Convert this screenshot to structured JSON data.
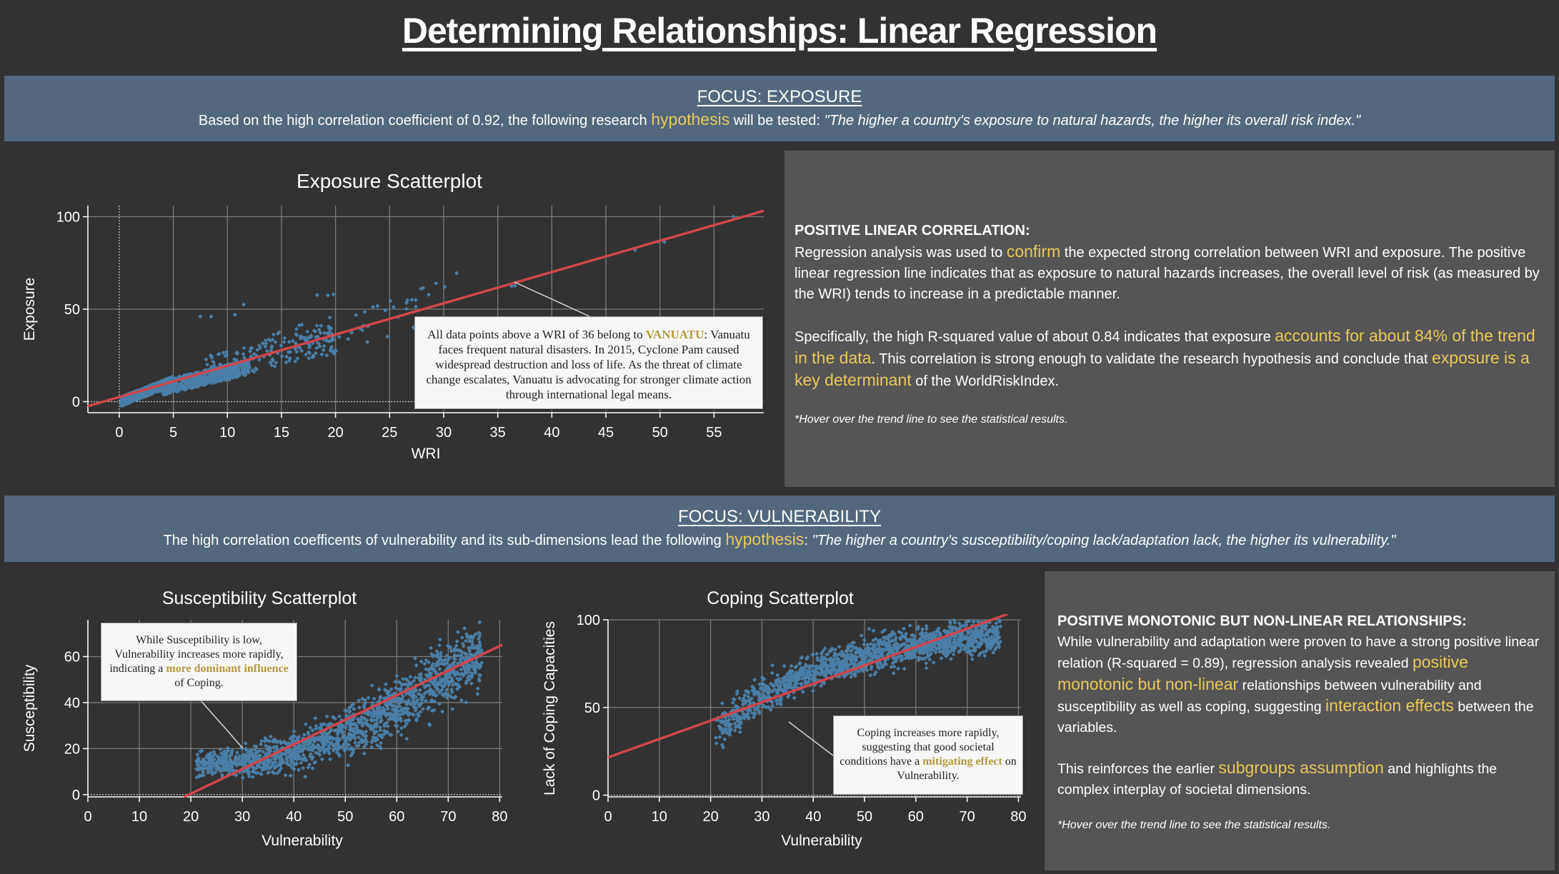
{
  "page": {
    "title": "Determining Relationships: Linear Regression"
  },
  "exposure_section": {
    "heading": "FOCUS: EXPOSURE",
    "text_before": "Based on the high correlation coefficient of 0.92, the following research ",
    "highlight": "hypothesis",
    "text_after": " will be tested: ",
    "quote": "\"The higher a country's exposure to natural hazards, the higher its overall risk index.\"",
    "panel": {
      "heading": "POSITIVE LINEAR CORRELATION:",
      "p1_a": "Regression analysis was used to ",
      "p1_hl": "confirm",
      "p1_b": " the expected strong correlation between WRI and exposure. The positive linear regression line indicates that as exposure to natural hazards increases, the overall level of risk (as measured by the WRI) tends to increase in a predictable manner.",
      "p2_a": "Specifically, the high R-squared value of about 0.84 indicates that exposure ",
      "p2_hl1": "accounts for about 84% of the trend in the data",
      "p2_b": ". This correlation is strong enough to validate the research hypothesis and conclude that ",
      "p2_hl2": "exposure is a key determinant",
      "p2_c": " of the WorldRiskIndex.",
      "note": "*Hover over the trend line to see the statistical results."
    },
    "annotation": {
      "a": "All data points above a WRI of 36 belong to ",
      "hl": "VANUATU",
      "b": ": Vanuatu faces frequent natural disasters. In 2015, Cyclone Pam caused widespread destruction and loss of life. As the threat of climate change escalates, Vanuatu is advocating for stronger climate action through international legal means."
    }
  },
  "vulnerability_section": {
    "heading": "FOCUS: VULNERABILITY",
    "text_before": "The high correlation coefficents of vulnerability and its sub-dimensions lead the following ",
    "highlight": "hypothesis",
    "text_after": ": ",
    "quote": "\"The higher a country's susceptibility/coping lack/adaptation lack, the higher its vulnerability.\"",
    "panel": {
      "heading": "POSITIVE MONOTONIC BUT NON-LINEAR RELATIONSHIPS:",
      "p1_a": "While vulnerability and adaptation were proven to have a strong positive linear relation (R-squared = 0.89), regression analysis revealed ",
      "p1_hl1": "positive monotonic but non-linear",
      "p1_b": " relationships between vulnerability and susceptibility as well as coping, suggesting ",
      "p1_hl2": "interaction effects",
      "p1_c": " between the variables.",
      "p2_a": "This reinforces the earlier ",
      "p2_hl": "subgroups assumption",
      "p2_b": " and highlights the complex interplay of societal dimensions.",
      "note": "*Hover over the trend line to see the statistical results."
    },
    "susceptibility_annotation": {
      "a": "While Susceptibility is low, Vulnerability increases more rapidly, indicating a ",
      "hl": "more dominant influence",
      "b": " of Coping."
    },
    "coping_annotation": {
      "a": "Coping increases more rapidly, suggesting that good societal conditions have a ",
      "hl": "mitigating effect",
      "b": " on Vulnerability."
    }
  },
  "colors": {
    "background": "#323232",
    "band": "#53677e",
    "panel": "#555555",
    "highlight": "#e8c95a",
    "annotation_highlight": "#b39a3c",
    "points": "#4a7ea6",
    "trend_line": "#d0454c"
  },
  "chart_data": [
    {
      "id": "exposure",
      "type": "scatter",
      "title": "Exposure Scatterplot",
      "xlabel": "WRI",
      "ylabel": "Exposure",
      "xlim": [
        -2.9,
        59.6
      ],
      "ylim": [
        -6,
        106
      ],
      "xticks": [
        0,
        5,
        10,
        15,
        20,
        25,
        30,
        35,
        40,
        45,
        50,
        55
      ],
      "yticks": [
        0,
        50,
        100
      ],
      "grid": true,
      "trend": {
        "intercept": 2.5,
        "slope": 1.69,
        "r_squared": 0.84,
        "x_range": [
          -2.9,
          59.6
        ]
      },
      "point_clusters": [
        {
          "n": 900,
          "x": [
            0.2,
            5
          ],
          "y_rel": [
            -2.5,
            2.5
          ],
          "base": "line",
          "base_slope": 2.3,
          "base_intercept": -0.3
        },
        {
          "n": 650,
          "x": [
            4,
            12
          ],
          "y_rel": [
            -5,
            3
          ],
          "base": "line",
          "base_slope": 1.45,
          "base_intercept": 2.5
        },
        {
          "n": 160,
          "x": [
            8,
            20
          ],
          "y_rel": [
            -6,
            10
          ],
          "base": "line",
          "base_slope": 1.45,
          "base_intercept": 3
        },
        {
          "n": 60,
          "x": [
            12,
            29
          ],
          "y_rel": [
            -8,
            12
          ],
          "base": "line",
          "base_slope": 1.55,
          "base_intercept": 4
        }
      ],
      "vanuatu_points": [
        [
          36.3,
          62.5
        ],
        [
          36.6,
          62.7
        ],
        [
          47.7,
          82
        ],
        [
          49.8,
          86.5
        ],
        [
          50.4,
          86.3
        ],
        [
          56.8,
          100
        ]
      ],
      "outliers": [
        [
          27.9,
          61
        ],
        [
          28.1,
          61.5
        ],
        [
          31.2,
          69.5
        ],
        [
          30.1,
          62
        ],
        [
          29.3,
          64
        ],
        [
          18.3,
          57.7
        ],
        [
          19.3,
          57.5
        ],
        [
          19.8,
          58
        ],
        [
          11.5,
          52.5
        ],
        [
          7.5,
          46
        ],
        [
          8.5,
          46
        ],
        [
          10.7,
          47
        ]
      ]
    },
    {
      "id": "susceptibility",
      "type": "scatter",
      "title": "Susceptibility Scatterplot",
      "xlabel": "Vulnerability",
      "ylabel": "Susceptibility",
      "xlim": [
        0,
        80.5
      ],
      "ylim": [
        -1,
        76
      ],
      "xticks": [
        0,
        10,
        20,
        30,
        40,
        50,
        60,
        70,
        80
      ],
      "yticks": [
        0,
        20,
        40,
        60
      ],
      "grid": true,
      "trend": {
        "intercept": -21,
        "slope": 1.07,
        "x_range": [
          18.7,
          80.5
        ]
      },
      "point_curve": {
        "n": 1500,
        "x": [
          21,
          76.5
        ],
        "a": 13,
        "b": 0.0165,
        "x0": 21,
        "spread": 4.5
      }
    },
    {
      "id": "coping",
      "type": "scatter",
      "title": "Coping Scatterplot",
      "xlabel": "Vulnerability",
      "ylabel": "Lack of Coping Capacities",
      "xlim": [
        0,
        80.5
      ],
      "ylim": [
        -1,
        100
      ],
      "xticks": [
        0,
        10,
        20,
        30,
        40,
        50,
        60,
        70,
        80
      ],
      "yticks": [
        0,
        50,
        100
      ],
      "grid": true,
      "trend": {
        "intercept": 21.5,
        "slope": 1.05,
        "x_range": [
          0,
          78
        ]
      },
      "point_curve": {
        "n": 1500,
        "x": [
          21,
          76.5
        ],
        "a": 36,
        "k": 60,
        "rate": 0.045,
        "x0": 21,
        "spread": 5
      }
    }
  ]
}
